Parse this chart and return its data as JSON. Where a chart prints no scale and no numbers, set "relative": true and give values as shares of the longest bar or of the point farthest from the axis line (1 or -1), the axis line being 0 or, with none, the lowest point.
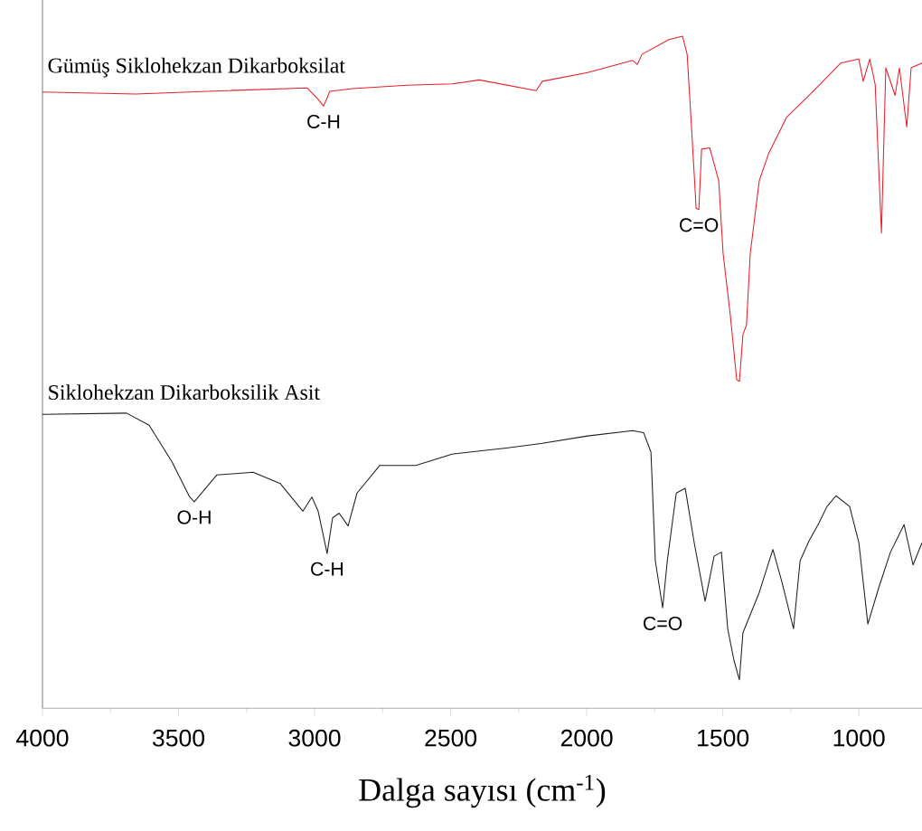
{
  "chart_data": {
    "type": "line",
    "relative": true,
    "xlabel": "Dalga sayısı (cm$^{-1}$)",
    "xlim": [
      4000,
      768
    ],
    "xticks": [
      4000,
      3500,
      3000,
      2500,
      2000,
      1500,
      1000
    ],
    "series": [
      {
        "name": "Gümüş Siklohekzan Dikarboksilat",
        "color": "#e8202a",
        "x": [
          4000,
          3658,
          3326,
          3027,
          2987,
          2967,
          2944,
          2861,
          2661,
          2495,
          2395,
          2186,
          2163,
          1997,
          1831,
          1814,
          1797,
          1698,
          1648,
          1631,
          1615,
          1598,
          1588,
          1578,
          1548,
          1515,
          1499,
          1472,
          1449,
          1439,
          1426,
          1413,
          1399,
          1366,
          1332,
          1266,
          1166,
          1067,
          1000,
          984,
          960,
          940,
          917,
          901,
          867,
          851,
          824,
          808,
          768
        ],
        "values": [
          0.917,
          0.914,
          0.919,
          0.923,
          0.906,
          0.896,
          0.918,
          0.922,
          0.927,
          0.929,
          0.935,
          0.919,
          0.933,
          0.946,
          0.964,
          0.958,
          0.973,
          0.995,
          1.0,
          0.973,
          0.865,
          0.744,
          0.742,
          0.832,
          0.834,
          0.785,
          0.677,
          0.583,
          0.489,
          0.486,
          0.556,
          0.57,
          0.677,
          0.785,
          0.825,
          0.879,
          0.919,
          0.96,
          0.966,
          0.933,
          0.966,
          0.928,
          0.707,
          0.953,
          0.912,
          0.953,
          0.865,
          0.953,
          0.96
        ]
      },
      {
        "name": "Siklohekzan Dikarboksilik Asit",
        "color": "#202020",
        "x": [
          4000,
          3691,
          3608,
          3525,
          3459,
          3442,
          3359,
          3226,
          3126,
          3043,
          3010,
          2987,
          2954,
          2934,
          2910,
          2877,
          2844,
          2761,
          2628,
          2495,
          2296,
          2163,
          1997,
          1831,
          1791,
          1764,
          1748,
          1721,
          1704,
          1671,
          1638,
          1605,
          1565,
          1532,
          1505,
          1482,
          1459,
          1439,
          1426,
          1399,
          1366,
          1316,
          1283,
          1240,
          1216,
          1183,
          1150,
          1117,
          1084,
          1034,
          1000,
          967,
          927,
          884,
          834,
          801,
          768
        ],
        "values": [
          0.437,
          0.439,
          0.421,
          0.367,
          0.314,
          0.307,
          0.347,
          0.351,
          0.334,
          0.293,
          0.314,
          0.293,
          0.23,
          0.283,
          0.29,
          0.271,
          0.32,
          0.361,
          0.361,
          0.378,
          0.387,
          0.394,
          0.405,
          0.413,
          0.41,
          0.381,
          0.219,
          0.149,
          0.219,
          0.32,
          0.327,
          0.246,
          0.159,
          0.226,
          0.232,
          0.118,
          0.071,
          0.042,
          0.112,
          0.139,
          0.172,
          0.236,
          0.188,
          0.118,
          0.219,
          0.249,
          0.273,
          0.3,
          0.316,
          0.3,
          0.246,
          0.125,
          0.179,
          0.232,
          0.273,
          0.213,
          0.246
        ]
      }
    ],
    "annotations": [
      {
        "text": "C-H",
        "x": 2967,
        "y": 0.896
      },
      {
        "text": "C=O",
        "x": 1588,
        "y": 0.742
      },
      {
        "text": "O-H",
        "x": 3442,
        "y": 0.307
      },
      {
        "text": "C-H",
        "x": 2954,
        "y": 0.23
      },
      {
        "text": "C=O",
        "x": 1721,
        "y": 0.149
      }
    ]
  }
}
